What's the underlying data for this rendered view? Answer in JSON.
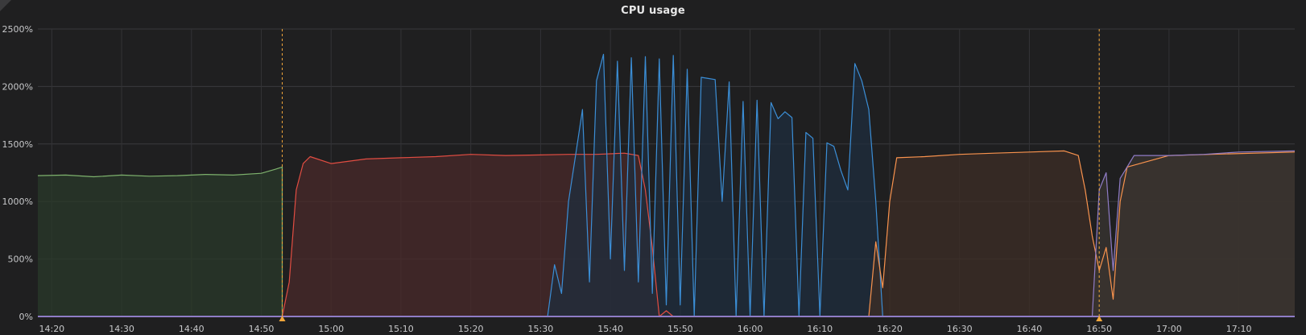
{
  "panel": {
    "title": "CPU usage"
  },
  "chart_data": {
    "type": "area",
    "title": "CPU usage",
    "xlabel": "",
    "ylabel": "",
    "x_unit": "time (HH:MM)",
    "xlim": [
      "14:18",
      "17:18"
    ],
    "ylim": [
      0,
      2500
    ],
    "y_ticks": [
      0,
      500,
      1000,
      1500,
      2000,
      2500
    ],
    "y_tick_labels": [
      "0%",
      "500%",
      "1000%",
      "1500%",
      "2000%",
      "2500%"
    ],
    "x_ticks": [
      "14:20",
      "14:30",
      "14:40",
      "14:50",
      "15:00",
      "15:10",
      "15:20",
      "15:30",
      "15:40",
      "15:50",
      "16:00",
      "16:10",
      "16:20",
      "16:30",
      "16:40",
      "16:50",
      "17:00",
      "17:10"
    ],
    "grid": true,
    "legend": "none",
    "annotations": [
      {
        "time": "14:53",
        "color": "#f2a73b"
      },
      {
        "time": "16:50",
        "color": "#f2a73b"
      }
    ],
    "series": [
      {
        "color": "#7eb26d",
        "fill": "#2a3a2a",
        "points": [
          [
            "14:18",
            1225
          ],
          [
            "14:22",
            1230
          ],
          [
            "14:26",
            1215
          ],
          [
            "14:30",
            1230
          ],
          [
            "14:34",
            1220
          ],
          [
            "14:38",
            1225
          ],
          [
            "14:42",
            1235
          ],
          [
            "14:46",
            1230
          ],
          [
            "14:50",
            1245
          ],
          [
            "14:52",
            1280
          ],
          [
            "14:53",
            1300
          ],
          [
            "14:53",
            0
          ],
          [
            "17:18",
            0
          ]
        ]
      },
      {
        "color": "#e24d42",
        "fill": "#4a2a2a",
        "points": [
          [
            "14:18",
            0
          ],
          [
            "14:53",
            0
          ],
          [
            "14:54",
            300
          ],
          [
            "14:55",
            1100
          ],
          [
            "14:56",
            1330
          ],
          [
            "14:57",
            1390
          ],
          [
            "15:00",
            1330
          ],
          [
            "15:05",
            1370
          ],
          [
            "15:10",
            1380
          ],
          [
            "15:15",
            1390
          ],
          [
            "15:20",
            1410
          ],
          [
            "15:25",
            1400
          ],
          [
            "15:30",
            1405
          ],
          [
            "15:34",
            1410
          ],
          [
            "15:38",
            1410
          ],
          [
            "15:42",
            1420
          ],
          [
            "15:44",
            1400
          ],
          [
            "15:45",
            1100
          ],
          [
            "15:46",
            600
          ],
          [
            "15:47",
            0
          ],
          [
            "15:48",
            50
          ],
          [
            "15:49",
            0
          ],
          [
            "17:18",
            0
          ]
        ]
      },
      {
        "color": "#3b8ed6",
        "fill": "#1f2d3d",
        "points": [
          [
            "14:18",
            0
          ],
          [
            "15:31",
            0
          ],
          [
            "15:32",
            450
          ],
          [
            "15:33",
            200
          ],
          [
            "15:34",
            1000
          ],
          [
            "15:35",
            1400
          ],
          [
            "15:36",
            1800
          ],
          [
            "15:37",
            300
          ],
          [
            "15:38",
            2050
          ],
          [
            "15:39",
            2280
          ],
          [
            "15:40",
            500
          ],
          [
            "15:41",
            2220
          ],
          [
            "15:42",
            400
          ],
          [
            "15:43",
            2250
          ],
          [
            "15:44",
            300
          ],
          [
            "15:45",
            2260
          ],
          [
            "15:46",
            200
          ],
          [
            "15:47",
            2240
          ],
          [
            "15:48",
            100
          ],
          [
            "15:49",
            2270
          ],
          [
            "15:50",
            100
          ],
          [
            "15:51",
            2150
          ],
          [
            "15:52",
            0
          ],
          [
            "15:53",
            2080
          ],
          [
            "15:54",
            2070
          ],
          [
            "15:55",
            2060
          ],
          [
            "15:56",
            1000
          ],
          [
            "15:57",
            2040
          ],
          [
            "15:58",
            0
          ],
          [
            "15:59",
            1870
          ],
          [
            "16:00",
            0
          ],
          [
            "16:01",
            1880
          ],
          [
            "16:02",
            0
          ],
          [
            "16:03",
            1860
          ],
          [
            "16:04",
            1720
          ],
          [
            "16:05",
            1780
          ],
          [
            "16:06",
            1730
          ],
          [
            "16:07",
            0
          ],
          [
            "16:08",
            1600
          ],
          [
            "16:09",
            1550
          ],
          [
            "16:10",
            0
          ],
          [
            "16:11",
            1510
          ],
          [
            "16:12",
            1480
          ],
          [
            "16:13",
            1270
          ],
          [
            "16:14",
            1100
          ],
          [
            "16:15",
            2200
          ],
          [
            "16:16",
            2050
          ],
          [
            "16:17",
            1800
          ],
          [
            "16:18",
            1000
          ],
          [
            "16:19",
            0
          ],
          [
            "17:18",
            0
          ]
        ]
      },
      {
        "color": "#f9934e",
        "fill": "#3d2d25",
        "points": [
          [
            "14:18",
            0
          ],
          [
            "16:17",
            0
          ],
          [
            "16:18",
            650
          ],
          [
            "16:19",
            250
          ],
          [
            "16:20",
            1000
          ],
          [
            "16:21",
            1380
          ],
          [
            "16:25",
            1390
          ],
          [
            "16:30",
            1410
          ],
          [
            "16:35",
            1420
          ],
          [
            "16:40",
            1430
          ],
          [
            "16:45",
            1440
          ],
          [
            "16:47",
            1400
          ],
          [
            "16:48",
            1100
          ],
          [
            "16:49",
            700
          ],
          [
            "16:50",
            400
          ],
          [
            "16:51",
            600
          ],
          [
            "16:52",
            150
          ],
          [
            "16:53",
            1000
          ],
          [
            "16:54",
            1300
          ],
          [
            "17:00",
            1400
          ],
          [
            "17:18",
            1430
          ]
        ]
      },
      {
        "color": "#8f7cc6",
        "fill": "#3a3632",
        "points": [
          [
            "14:18",
            0
          ],
          [
            "16:49",
            0
          ],
          [
            "16:50",
            1100
          ],
          [
            "16:51",
            1250
          ],
          [
            "16:52",
            400
          ],
          [
            "16:53",
            1200
          ],
          [
            "16:55",
            1400
          ],
          [
            "17:00",
            1400
          ],
          [
            "17:05",
            1410
          ],
          [
            "17:10",
            1430
          ],
          [
            "17:18",
            1440
          ]
        ]
      }
    ]
  }
}
